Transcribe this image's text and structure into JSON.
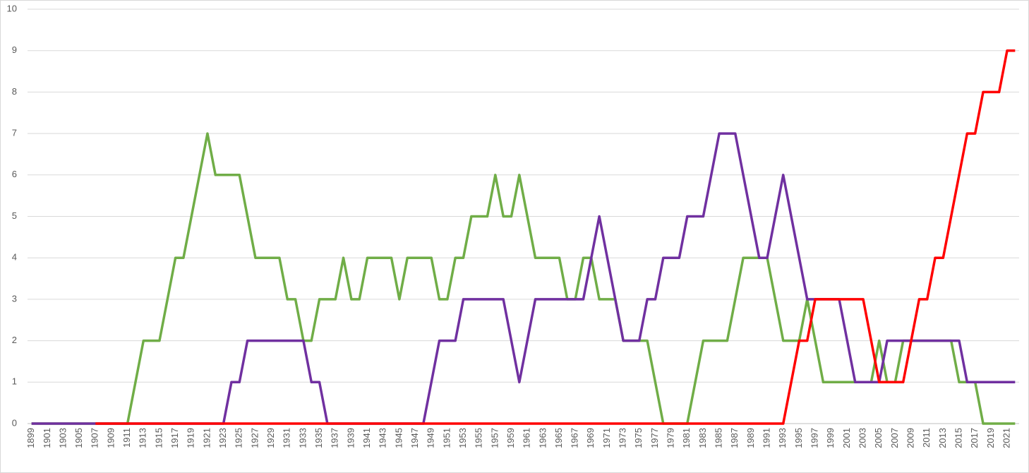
{
  "chart_data": {
    "type": "line",
    "categories": [
      "1899",
      null,
      "1901",
      null,
      "1903",
      null,
      "1905",
      null,
      "1907",
      null,
      "1909",
      null,
      "1911",
      null,
      "1913",
      null,
      "1915",
      null,
      "1917",
      null,
      "1919",
      null,
      "1921",
      null,
      "1923",
      null,
      "1925",
      null,
      "1927",
      null,
      "1929",
      null,
      "1931",
      null,
      "1933",
      null,
      "1935",
      null,
      "1937",
      null,
      "1939",
      null,
      "1941",
      null,
      "1943",
      null,
      "1945",
      null,
      "1947",
      null,
      "1949",
      null,
      "1951",
      null,
      "1953",
      null,
      "1955",
      null,
      "1957",
      null,
      "1959",
      null,
      "1961",
      null,
      "1963",
      null,
      "1965",
      null,
      "1967",
      null,
      "1969",
      null,
      "1971",
      null,
      "1973",
      null,
      "1975",
      null,
      "1977",
      null,
      "1979",
      null,
      "1981",
      null,
      "1983",
      null,
      "1985",
      null,
      "1987",
      null,
      "1989",
      null,
      "1991",
      null,
      "1993",
      null,
      "1995",
      null,
      "1997",
      null,
      "1999",
      null,
      "2001",
      null,
      "2003",
      null,
      "2005",
      null,
      "2007",
      null,
      "2009",
      null,
      "2011",
      null,
      "2013",
      null,
      "2015",
      null,
      "2017",
      null,
      "2019",
      null,
      "2021",
      null
    ],
    "series": [
      {
        "color": "#70ad47",
        "values": [
          0,
          0,
          0,
          0,
          0,
          0,
          0,
          0,
          0,
          0,
          0,
          0,
          0,
          1,
          2,
          2,
          2,
          3,
          4,
          4,
          5,
          6,
          7,
          6,
          6,
          6,
          6,
          5,
          4,
          4,
          4,
          4,
          3,
          3,
          2,
          2,
          3,
          3,
          3,
          4,
          3,
          3,
          4,
          4,
          4,
          4,
          3,
          4,
          4,
          4,
          4,
          3,
          3,
          4,
          4,
          5,
          5,
          5,
          6,
          5,
          5,
          6,
          5,
          4,
          4,
          4,
          4,
          3,
          3,
          4,
          4,
          3,
          3,
          3,
          2,
          2,
          2,
          2,
          1,
          0,
          0,
          0,
          0,
          1,
          2,
          2,
          2,
          2,
          3,
          4,
          4,
          4,
          4,
          3,
          2,
          2,
          2,
          3,
          2,
          1,
          1,
          1,
          1,
          1,
          1,
          1,
          2,
          1,
          1,
          2,
          2,
          2,
          2,
          2,
          2,
          2,
          1,
          1,
          1,
          0,
          0,
          0,
          0,
          0
        ]
      },
      {
        "color": "#7030a0",
        "values": [
          0,
          0,
          0,
          0,
          0,
          0,
          0,
          0,
          0,
          0,
          0,
          0,
          0,
          0,
          0,
          0,
          0,
          0,
          0,
          0,
          0,
          0,
          0,
          0,
          0,
          1,
          1,
          2,
          2,
          2,
          2,
          2,
          2,
          2,
          2,
          1,
          1,
          0,
          0,
          0,
          0,
          0,
          0,
          0,
          0,
          0,
          0,
          0,
          0,
          0,
          1,
          2,
          2,
          2,
          3,
          3,
          3,
          3,
          3,
          3,
          2,
          1,
          2,
          3,
          3,
          3,
          3,
          3,
          3,
          3,
          4,
          5,
          4,
          3,
          2,
          2,
          2,
          3,
          3,
          4,
          4,
          4,
          5,
          5,
          5,
          6,
          7,
          7,
          7,
          6,
          5,
          4,
          4,
          5,
          6,
          5,
          4,
          3,
          3,
          3,
          3,
          3,
          2,
          1,
          1,
          1,
          1,
          2,
          2,
          2,
          2,
          2,
          2,
          2,
          2,
          2,
          2,
          1,
          1,
          1,
          1,
          1,
          1,
          1
        ]
      },
      {
        "color": "#ff0000",
        "values": [
          null,
          null,
          null,
          null,
          null,
          null,
          null,
          null,
          0,
          0,
          0,
          0,
          0,
          0,
          0,
          0,
          0,
          0,
          0,
          0,
          0,
          0,
          0,
          0,
          0,
          0,
          0,
          0,
          0,
          0,
          0,
          0,
          0,
          0,
          0,
          0,
          0,
          0,
          0,
          0,
          0,
          0,
          0,
          0,
          0,
          0,
          0,
          0,
          0,
          0,
          0,
          0,
          0,
          0,
          0,
          0,
          0,
          0,
          0,
          0,
          0,
          0,
          0,
          0,
          0,
          0,
          0,
          0,
          0,
          0,
          0,
          0,
          0,
          0,
          0,
          0,
          0,
          0,
          0,
          0,
          0,
          0,
          0,
          0,
          0,
          0,
          0,
          0,
          0,
          0,
          0,
          0,
          0,
          0,
          0,
          1,
          2,
          2,
          3,
          3,
          3,
          3,
          3,
          3,
          3,
          2,
          1,
          1,
          1,
          1,
          2,
          3,
          3,
          4,
          4,
          5,
          6,
          7,
          7,
          8,
          8,
          8,
          9,
          9
        ]
      }
    ],
    "ylim": [
      0,
      10
    ],
    "yticks": [
      0,
      1,
      2,
      3,
      4,
      5,
      6,
      7,
      8,
      9,
      10
    ],
    "grid": true
  }
}
